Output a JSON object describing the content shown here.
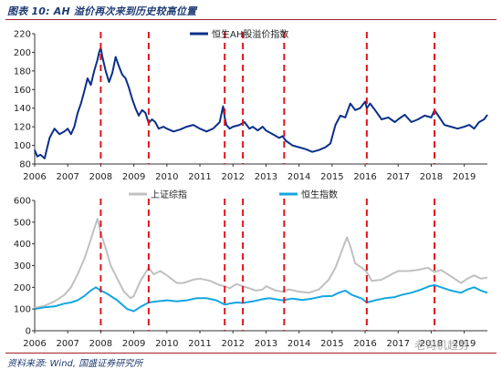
{
  "figure": {
    "title": "图表 10:  AH 溢价再次来到历史较高位置",
    "source": "资料来源:  Wind,  国盛证券研究所",
    "watermark": "老司机趋势"
  },
  "colors": {
    "ah": "#0b2f8a",
    "sse": "#c0c0c0",
    "hsi": "#12a6e0",
    "marker": "#e0141b",
    "rule": "#a31f24",
    "title": "#1f3b73"
  },
  "chart_data": [
    {
      "type": "line",
      "title": "",
      "xlabel": "",
      "ylabel": "",
      "x_ticks": [
        "2006",
        "2007",
        "2008",
        "2009",
        "2010",
        "2011",
        "2012",
        "2013",
        "2014",
        "2015",
        "2016",
        "2017",
        "2018",
        "2019"
      ],
      "xlim": [
        2006,
        2019.7
      ],
      "ylim": [
        80,
        220
      ],
      "y_ticks": [
        80,
        100,
        120,
        140,
        160,
        180,
        200,
        220
      ],
      "legend_position": "top-center",
      "series": [
        {
          "name": "恒生AH股溢价指数",
          "color": "#0b2f8a",
          "x": [
            2006.0,
            2006.08,
            2006.17,
            2006.3,
            2006.45,
            2006.6,
            2006.75,
            2006.9,
            2007.0,
            2007.1,
            2007.2,
            2007.3,
            2007.4,
            2007.5,
            2007.6,
            2007.7,
            2007.8,
            2007.9,
            2007.95,
            2008.0,
            2008.05,
            2008.15,
            2008.25,
            2008.35,
            2008.45,
            2008.55,
            2008.65,
            2008.75,
            2008.85,
            2008.95,
            2009.05,
            2009.15,
            2009.25,
            2009.35,
            2009.45,
            2009.55,
            2009.65,
            2009.75,
            2009.9,
            2010.0,
            2010.2,
            2010.4,
            2010.6,
            2010.8,
            2011.0,
            2011.2,
            2011.4,
            2011.6,
            2011.7,
            2011.75,
            2011.8,
            2011.9,
            2012.0,
            2012.2,
            2012.35,
            2012.5,
            2012.6,
            2012.75,
            2012.9,
            2013.0,
            2013.2,
            2013.4,
            2013.5,
            2013.6,
            2013.8,
            2014.0,
            2014.2,
            2014.4,
            2014.6,
            2014.8,
            2014.95,
            2015.1,
            2015.25,
            2015.4,
            2015.55,
            2015.7,
            2015.85,
            2016.0,
            2016.05,
            2016.15,
            2016.3,
            2016.5,
            2016.7,
            2016.9,
            2017.0,
            2017.2,
            2017.4,
            2017.6,
            2017.8,
            2018.0,
            2018.1,
            2018.25,
            2018.4,
            2018.6,
            2018.8,
            2019.0,
            2019.15,
            2019.3,
            2019.45,
            2019.6,
            2019.7
          ],
          "values": [
            95,
            88,
            90,
            86,
            108,
            118,
            112,
            115,
            118,
            112,
            120,
            135,
            145,
            158,
            172,
            165,
            180,
            192,
            200,
            205,
            195,
            180,
            168,
            178,
            195,
            185,
            176,
            172,
            162,
            150,
            140,
            132,
            138,
            135,
            124,
            128,
            125,
            118,
            120,
            118,
            115,
            117,
            120,
            122,
            118,
            115,
            118,
            125,
            142,
            130,
            122,
            118,
            120,
            122,
            125,
            118,
            120,
            116,
            120,
            116,
            112,
            108,
            110,
            105,
            100,
            98,
            96,
            93,
            95,
            98,
            102,
            122,
            132,
            130,
            145,
            138,
            140,
            147,
            140,
            145,
            138,
            128,
            130,
            125,
            128,
            133,
            125,
            128,
            132,
            130,
            138,
            130,
            122,
            120,
            118,
            120,
            122,
            118,
            125,
            128,
            133
          ]
        }
      ],
      "annotations": {
        "dashed_vlines_x": [
          2008.0,
          2009.45,
          2011.75,
          2012.3,
          2013.55,
          2016.05,
          2018.1
        ],
        "dashed_color": "#e0141b"
      }
    },
    {
      "type": "line",
      "title": "",
      "xlabel": "",
      "ylabel": "",
      "x_ticks": [
        "2006",
        "2007",
        "2008",
        "2009",
        "2010",
        "2011",
        "2012",
        "2013",
        "2014",
        "2015",
        "2016",
        "2017",
        "2018",
        "2019"
      ],
      "xlim": [
        2006,
        2019.7
      ],
      "ylim": [
        0,
        600
      ],
      "y_ticks": [
        0,
        100,
        200,
        300,
        400,
        500,
        600
      ],
      "legend_position": "top",
      "series": [
        {
          "name": "上证综指",
          "color": "#c0c0c0",
          "x": [
            2006.0,
            2006.3,
            2006.6,
            2006.9,
            2007.1,
            2007.3,
            2007.5,
            2007.7,
            2007.8,
            2007.9,
            2008.0,
            2008.15,
            2008.3,
            2008.5,
            2008.7,
            2008.9,
            2009.0,
            2009.2,
            2009.45,
            2009.6,
            2009.8,
            2010.0,
            2010.3,
            2010.5,
            2010.8,
            2011.0,
            2011.3,
            2011.6,
            2011.75,
            2011.9,
            2012.1,
            2012.3,
            2012.5,
            2012.7,
            2012.9,
            2013.0,
            2013.3,
            2013.5,
            2013.7,
            2014.0,
            2014.3,
            2014.6,
            2014.9,
            2015.1,
            2015.3,
            2015.45,
            2015.55,
            2015.7,
            2015.9,
            2016.05,
            2016.2,
            2016.5,
            2016.8,
            2017.0,
            2017.3,
            2017.6,
            2017.9,
            2018.1,
            2018.3,
            2018.6,
            2018.9,
            2019.1,
            2019.3,
            2019.5,
            2019.7
          ],
          "values": [
            105,
            115,
            135,
            165,
            200,
            260,
            330,
            420,
            470,
            515,
            450,
            380,
            300,
            240,
            180,
            150,
            160,
            230,
            290,
            260,
            275,
            255,
            220,
            220,
            235,
            240,
            230,
            210,
            205,
            195,
            215,
            205,
            195,
            185,
            190,
            205,
            185,
            180,
            190,
            180,
            175,
            190,
            235,
            290,
            370,
            430,
            390,
            310,
            290,
            270,
            230,
            235,
            260,
            275,
            275,
            280,
            290,
            270,
            280,
            250,
            220,
            240,
            255,
            240,
            245
          ]
        },
        {
          "name": "恒生指数",
          "color": "#12a6e0",
          "x": [
            2006.0,
            2006.3,
            2006.6,
            2006.9,
            2007.1,
            2007.3,
            2007.5,
            2007.7,
            2007.85,
            2008.0,
            2008.2,
            2008.5,
            2008.8,
            2009.0,
            2009.2,
            2009.45,
            2009.7,
            2010.0,
            2010.3,
            2010.6,
            2010.9,
            2011.2,
            2011.5,
            2011.75,
            2011.9,
            2012.1,
            2012.3,
            2012.6,
            2012.9,
            2013.1,
            2013.5,
            2013.8,
            2014.1,
            2014.4,
            2014.7,
            2015.0,
            2015.2,
            2015.4,
            2015.6,
            2015.9,
            2016.05,
            2016.3,
            2016.6,
            2016.9,
            2017.1,
            2017.4,
            2017.7,
            2017.95,
            2018.1,
            2018.3,
            2018.6,
            2018.9,
            2019.1,
            2019.3,
            2019.5,
            2019.7
          ],
          "values": [
            100,
            108,
            112,
            125,
            130,
            140,
            160,
            185,
            200,
            185,
            170,
            140,
            100,
            90,
            110,
            130,
            135,
            140,
            135,
            140,
            150,
            150,
            140,
            120,
            125,
            130,
            128,
            135,
            145,
            150,
            140,
            148,
            142,
            148,
            158,
            160,
            175,
            185,
            165,
            148,
            130,
            140,
            150,
            155,
            165,
            175,
            190,
            205,
            210,
            200,
            185,
            175,
            190,
            200,
            185,
            175
          ]
        }
      ],
      "annotations": {
        "dashed_vlines_x": [
          2008.0,
          2009.45,
          2011.75,
          2012.3,
          2013.55,
          2016.05,
          2018.1
        ],
        "dashed_color": "#e0141b"
      }
    }
  ]
}
